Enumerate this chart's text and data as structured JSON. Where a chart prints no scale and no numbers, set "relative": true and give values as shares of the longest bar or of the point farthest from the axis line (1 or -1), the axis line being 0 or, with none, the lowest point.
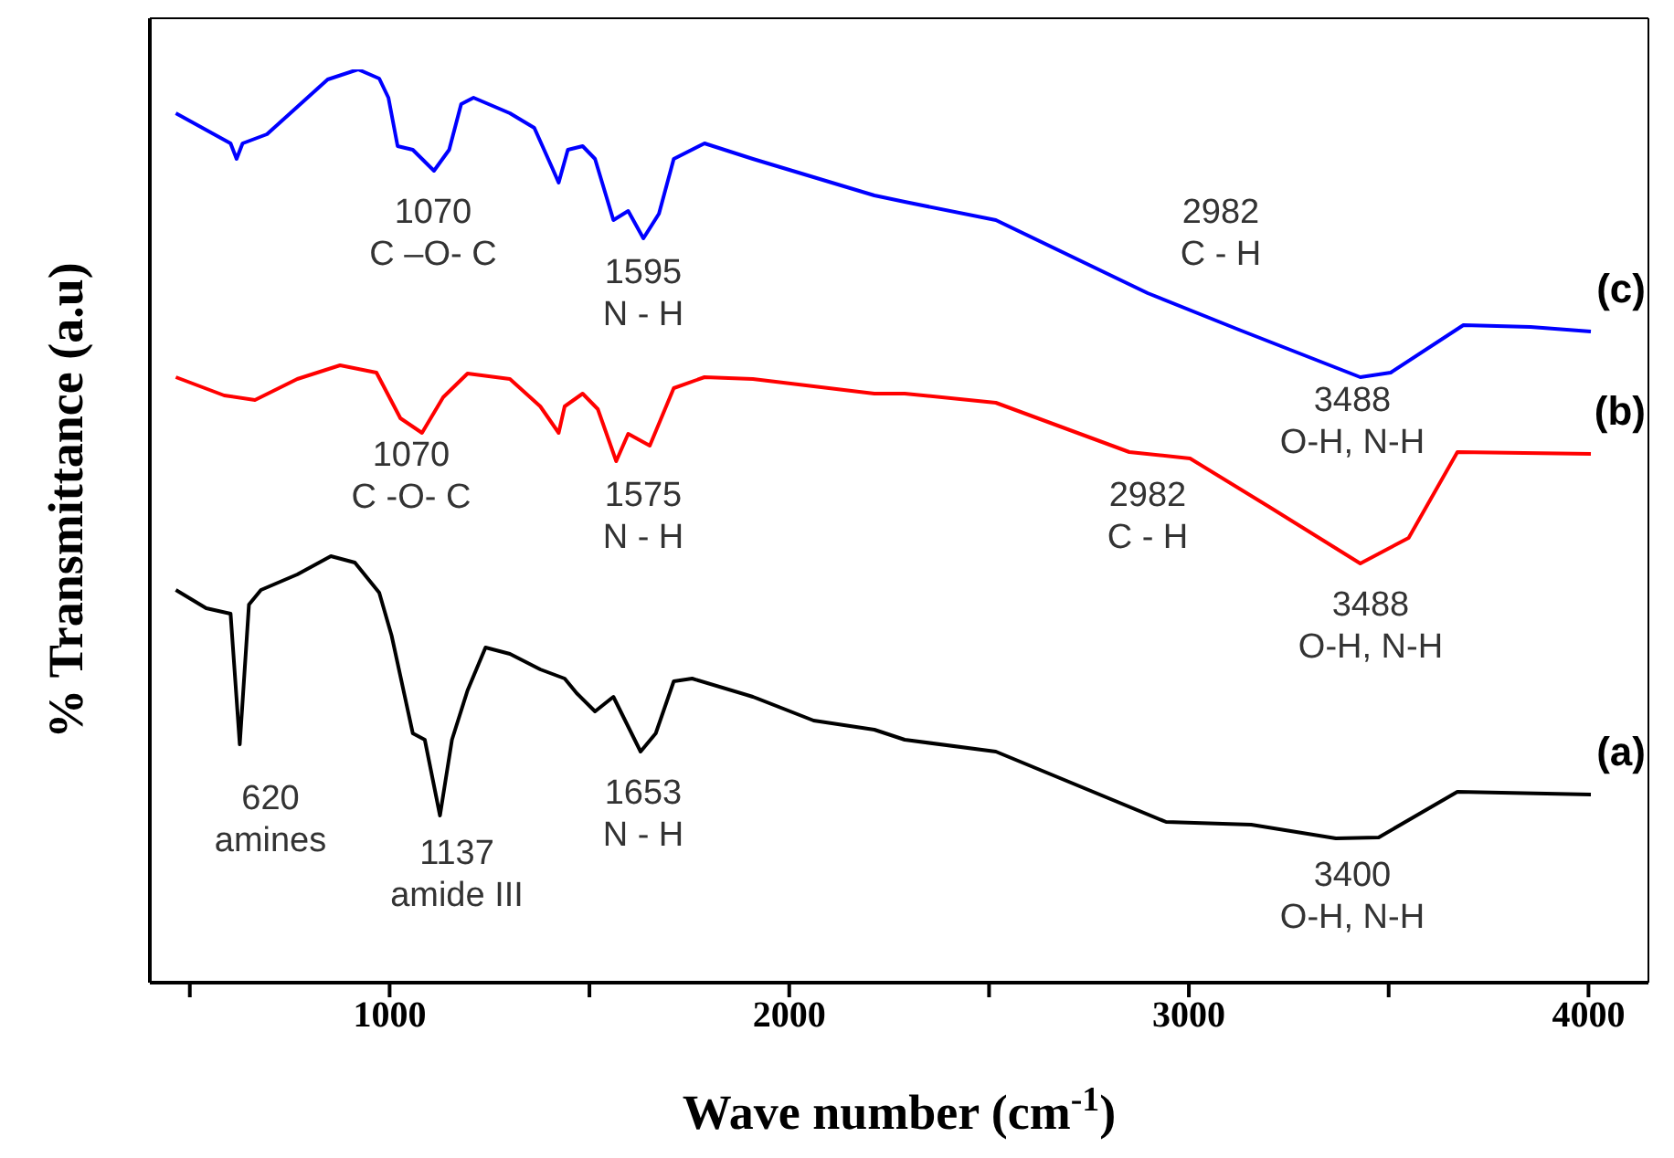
{
  "chart_data": {
    "type": "line",
    "xlabel": "Wave number (cm$^{-1}$)",
    "ylabel": "% Transmittance (a.u)",
    "relative": true,
    "xlim": [
      400,
      4150
    ],
    "xticks": [
      {
        "value": 500,
        "label": null
      },
      1000,
      {
        "value": 1500,
        "label": null
      },
      2000,
      {
        "value": 2500,
        "label": null
      },
      3000,
      {
        "value": 3500,
        "label": null
      },
      4000
    ],
    "series": [
      {
        "name": "(a)",
        "color": "#000000",
        "x": [
          465,
          541,
          602,
          625,
          648,
          678,
          769,
          853,
          913,
          974,
          1005,
          1058,
          1088,
          1126,
          1156,
          1195,
          1240,
          1301,
          1377,
          1438,
          1468,
          1514,
          1560,
          1628,
          1666,
          1711,
          1757,
          1909,
          2061,
          2213,
          2289,
          2517,
          2943,
          3156,
          3368,
          3475,
          3672,
          4006
        ],
        "values": [
          0.43,
          0.41,
          0.404,
          0.261,
          0.414,
          0.43,
          0.447,
          0.467,
          0.46,
          0.427,
          0.38,
          0.273,
          0.266,
          0.183,
          0.266,
          0.32,
          0.367,
          0.36,
          0.343,
          0.333,
          0.317,
          0.297,
          0.313,
          0.253,
          0.273,
          0.33,
          0.333,
          0.313,
          0.287,
          0.277,
          0.266,
          0.253,
          0.176,
          0.173,
          0.158,
          0.159,
          0.209,
          0.206
        ]
      },
      {
        "name": "(b)",
        "color": "#ff0000",
        "x": [
          465,
          586,
          663,
          769,
          876,
          967,
          1027,
          1081,
          1134,
          1195,
          1301,
          1377,
          1423,
          1438,
          1483,
          1521,
          1567,
          1597,
          1651,
          1711,
          1788,
          1909,
          2213,
          2289,
          2517,
          2851,
          3003,
          3201,
          3429,
          3550,
          3672,
          4006
        ],
        "values": [
          0.663,
          0.643,
          0.638,
          0.661,
          0.676,
          0.668,
          0.618,
          0.602,
          0.641,
          0.667,
          0.661,
          0.631,
          0.602,
          0.631,
          0.645,
          0.628,
          0.571,
          0.601,
          0.588,
          0.651,
          0.663,
          0.661,
          0.645,
          0.645,
          0.635,
          0.581,
          0.574,
          0.521,
          0.459,
          0.487,
          0.581,
          0.579
        ]
      },
      {
        "name": "(c)",
        "color": "#0000ff",
        "x": [
          465,
          602,
          617,
          632,
          693,
          845,
          921,
          974,
          997,
          1020,
          1058,
          1111,
          1149,
          1179,
          1210,
          1301,
          1362,
          1407,
          1423,
          1446,
          1483,
          1514,
          1560,
          1597,
          1635,
          1674,
          1711,
          1788,
          1909,
          2213,
          2289,
          2517,
          2897,
          3125,
          3429,
          3505,
          3687,
          3855,
          4006
        ],
        "values": [
          0.952,
          0.919,
          0.902,
          0.919,
          0.929,
          0.989,
          1.0,
          0.99,
          0.969,
          0.916,
          0.912,
          0.889,
          0.912,
          0.962,
          0.969,
          0.952,
          0.936,
          0.892,
          0.876,
          0.912,
          0.916,
          0.902,
          0.835,
          0.845,
          0.815,
          0.842,
          0.902,
          0.919,
          0.902,
          0.862,
          0.855,
          0.835,
          0.755,
          0.715,
          0.663,
          0.668,
          0.72,
          0.718,
          0.713
        ]
      }
    ],
    "annotations": [
      "1070\nC –O- C",
      "1595\nN - H",
      "2982\nC - H",
      "3488\nO-H, N-H",
      "1070\nC -O- C",
      "1575\nN - H",
      "2982\nC - H",
      "3488\nO-H, N-H",
      "620\namines",
      "1137\namide III",
      "1653\nN - H",
      "3400\nO-H, N-H"
    ]
  }
}
